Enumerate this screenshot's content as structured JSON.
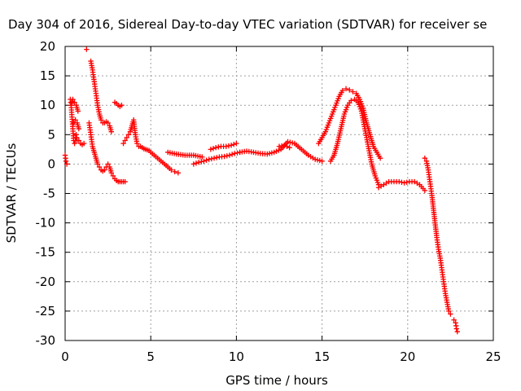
{
  "chart_data": {
    "type": "scatter",
    "title": "Day 304 of 2016, Sidereal Day-to-day VTEC variation (SDTVAR) for receiver se",
    "xlabel": "GPS time / hours",
    "ylabel": "SDTVAR / TECUs",
    "xlim": [
      0,
      25
    ],
    "ylim": [
      -30,
      20
    ],
    "xticks": [
      0,
      5,
      10,
      15,
      20,
      25
    ],
    "yticks": [
      -30,
      -25,
      -20,
      -15,
      -10,
      -5,
      0,
      5,
      10,
      15,
      20
    ],
    "grid": true,
    "marker": "+",
    "color": "#ff0000",
    "series": [
      {
        "x": [
          0,
          0.05,
          0.1
        ],
        "y": [
          1.5,
          0.5,
          0
        ]
      },
      {
        "x": [
          0.3,
          0.35,
          0.4,
          0.45,
          0.5,
          0.55,
          0.6,
          0.65,
          0.7
        ],
        "y": [
          11,
          10,
          8,
          6,
          4,
          3.5,
          4,
          5,
          4
        ]
      },
      {
        "x": [
          0.35,
          0.45,
          0.55,
          0.65,
          0.75
        ],
        "y": [
          10,
          11,
          10.5,
          10,
          9
        ]
      },
      {
        "x": [
          0.5,
          0.6,
          0.7,
          0.8
        ],
        "y": [
          7,
          7.5,
          7,
          6
        ]
      },
      {
        "x": [
          0.8,
          0.9,
          1.0,
          1.1
        ],
        "y": [
          4,
          3.5,
          3.3,
          3.5
        ]
      },
      {
        "x": [
          1.25
        ],
        "y": [
          19.5
        ]
      },
      {
        "x": [
          1.5,
          1.6,
          1.7,
          1.8,
          1.9,
          2.0,
          2.1,
          2.2,
          2.3,
          2.4,
          2.5,
          2.6,
          2.7
        ],
        "y": [
          17.5,
          16,
          14,
          12,
          10,
          8.5,
          7.5,
          7,
          7,
          7.2,
          7,
          6.5,
          5.5
        ]
      },
      {
        "x": [
          1.4,
          1.5,
          1.6,
          1.7,
          1.8,
          1.9,
          2.0,
          2.1,
          2.2,
          2.3,
          2.4,
          2.5,
          2.6,
          2.7,
          2.8,
          2.9,
          3.0,
          3.1,
          3.2,
          3.3,
          3.4,
          3.5
        ],
        "y": [
          7,
          5,
          3,
          2,
          1,
          0,
          -0.5,
          -1,
          -1.2,
          -1,
          -0.5,
          0,
          -0.5,
          -1.5,
          -2,
          -2.5,
          -2.8,
          -3,
          -3,
          -3,
          -3,
          -3
        ]
      },
      {
        "x": [
          2.9,
          3.0,
          3.1,
          3.2,
          3.3
        ],
        "y": [
          10.5,
          10.3,
          10,
          9.8,
          10
        ]
      },
      {
        "x": [
          3.4,
          3.5,
          3.6,
          3.7,
          3.8,
          3.9,
          4.0,
          4.1,
          4.2,
          4.3,
          4.4,
          4.5,
          4.6,
          4.7,
          4.8,
          4.9,
          5.0,
          5.2,
          5.4,
          5.6,
          5.8,
          6.0,
          6.2,
          6.4,
          6.6
        ],
        "y": [
          3.5,
          4,
          4.5,
          5,
          5.5,
          6.5,
          7.5,
          5,
          3.5,
          3,
          3,
          2.8,
          2.6,
          2.5,
          2.4,
          2.3,
          2,
          1.5,
          1,
          0.5,
          0,
          -0.5,
          -1,
          -1.3,
          -1.5
        ]
      },
      {
        "x": [
          6.0,
          6.5,
          7.0,
          7.5,
          8.0
        ],
        "y": [
          2,
          1.7,
          1.5,
          1.5,
          1.2
        ]
      },
      {
        "x": [
          7.5,
          7.8,
          8.1,
          8.4,
          8.7,
          9.0,
          9.3,
          9.6,
          9.9,
          10.2
        ],
        "y": [
          0,
          0.3,
          0.5,
          0.8,
          1,
          1.2,
          1.3,
          1.5,
          1.8,
          2
        ]
      },
      {
        "x": [
          8.5,
          8.8,
          9.1,
          9.4,
          9.7,
          10.0
        ],
        "y": [
          2.5,
          2.8,
          3,
          3,
          3.2,
          3.5
        ]
      },
      {
        "x": [
          10.2,
          10.6,
          11.0,
          11.4,
          11.8,
          12.2,
          12.6,
          13.0,
          13.4,
          13.8,
          14.2,
          14.6,
          15.0
        ],
        "y": [
          2,
          2.2,
          2,
          1.8,
          1.7,
          2,
          2.5,
          3.8,
          3.5,
          2.5,
          1.5,
          0.8,
          0.5
        ]
      },
      {
        "x": [
          12.5,
          12.8,
          13.1
        ],
        "y": [
          3,
          3.2,
          2.8
        ]
      },
      {
        "x": [
          14.8,
          15.0,
          15.2,
          15.4,
          15.6,
          15.8,
          16.0,
          16.2,
          16.4,
          16.6,
          16.8,
          17.0,
          17.2,
          17.4,
          17.6,
          17.8,
          18.0,
          18.2,
          18.4
        ],
        "y": [
          3.5,
          4.5,
          5.5,
          7,
          8.5,
          10,
          11.5,
          12.5,
          12.8,
          12.6,
          12.3,
          12,
          11,
          9.5,
          7,
          5,
          3,
          2,
          1
        ]
      },
      {
        "x": [
          15.5,
          15.7,
          15.9,
          16.1,
          16.3,
          16.5,
          16.7,
          16.9,
          17.1,
          17.3,
          17.5,
          17.7,
          17.9,
          18.1,
          18.3
        ],
        "y": [
          0.5,
          1.5,
          3.5,
          6,
          8.5,
          10,
          10.8,
          11,
          10.5,
          9,
          6,
          3,
          0,
          -2,
          -3.5
        ]
      },
      {
        "x": [
          18.3,
          18.6,
          18.9,
          19.2,
          19.5,
          19.8,
          20.1,
          20.4,
          20.7,
          21.0
        ],
        "y": [
          -4,
          -3.5,
          -3,
          -3,
          -3,
          -3.2,
          -3,
          -3,
          -3.5,
          -4.5
        ]
      },
      {
        "x": [
          21.0,
          21.1,
          21.2,
          21.3,
          21.4,
          21.5,
          21.6,
          21.7,
          21.8,
          21.9,
          22.0,
          22.1,
          22.2,
          22.3,
          22.4,
          22.5
        ],
        "y": [
          1,
          0.5,
          -1,
          -3,
          -5,
          -7.5,
          -10,
          -12.5,
          -14.5,
          -16,
          -18,
          -20,
          -22,
          -23.5,
          -25,
          -25.5
        ]
      },
      {
        "x": [
          22.7,
          22.8,
          22.85,
          22.9
        ],
        "y": [
          -26.5,
          -27,
          -28,
          -28.5
        ]
      }
    ]
  }
}
